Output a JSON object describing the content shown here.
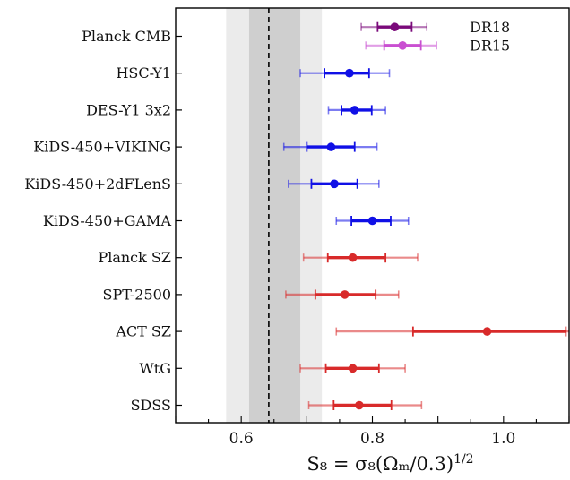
{
  "chart_data": {
    "type": "scatter",
    "title": "",
    "xlabel": "S₈ = σ₈(Ωₘ/0.3)",
    "xlabel_exponent": "1/2",
    "xlim": [
      0.5,
      1.1
    ],
    "x_ticks": [
      0.6,
      0.8,
      1.0
    ],
    "x_tick_labels": [
      "0.6",
      "0.8",
      "1.0"
    ],
    "reference_line": 0.642,
    "bands": [
      {
        "range": [
          0.577,
          0.723
        ],
        "color": "#ebebeb"
      },
      {
        "range": [
          0.612,
          0.69
        ],
        "color": "#cfcfcf"
      }
    ],
    "colors": {
      "dr18": "#7a0a7a",
      "dr15": "#c94fd1",
      "lensing": "#1010e6",
      "cluster": "#d82a2a"
    },
    "legend": [
      {
        "label": "DR18",
        "row": 0
      },
      {
        "label": "DR15",
        "row": 0.5
      }
    ],
    "points": [
      {
        "label": "Planck CMB",
        "color_key": "dr18",
        "row": -0.25,
        "value": 0.834,
        "err68": [
          0.808,
          0.86
        ],
        "err95": [
          0.783,
          0.883
        ]
      },
      {
        "label": "",
        "color_key": "dr15",
        "row": 0.25,
        "value": 0.846,
        "err68": [
          0.818,
          0.874
        ],
        "err95": [
          0.79,
          0.898
        ]
      },
      {
        "label": "HSC-Y1",
        "color_key": "lensing",
        "row": 1,
        "value": 0.765,
        "err68": [
          0.727,
          0.795
        ],
        "err95": [
          0.69,
          0.826
        ]
      },
      {
        "label": "DES-Y1 3x2",
        "color_key": "lensing",
        "row": 2,
        "value": 0.773,
        "err68": [
          0.753,
          0.799
        ],
        "err95": [
          0.733,
          0.82
        ]
      },
      {
        "label": "KiDS-450+VIKING",
        "color_key": "lensing",
        "row": 3,
        "value": 0.737,
        "err68": [
          0.7,
          0.773
        ],
        "err95": [
          0.665,
          0.807
        ]
      },
      {
        "label": "KiDS-450+2dFLenS",
        "color_key": "lensing",
        "row": 4,
        "value": 0.742,
        "err68": [
          0.707,
          0.777
        ],
        "err95": [
          0.672,
          0.81
        ]
      },
      {
        "label": "KiDS-450+GAMA",
        "color_key": "lensing",
        "row": 5,
        "value": 0.8,
        "err68": [
          0.768,
          0.828
        ],
        "err95": [
          0.745,
          0.855
        ]
      },
      {
        "label": "Planck SZ",
        "color_key": "cluster",
        "row": 6,
        "value": 0.77,
        "err68": [
          0.732,
          0.82
        ],
        "err95": [
          0.695,
          0.869
        ]
      },
      {
        "label": "SPT-2500",
        "color_key": "cluster",
        "row": 7,
        "value": 0.758,
        "err68": [
          0.713,
          0.805
        ],
        "err95": [
          0.668,
          0.84
        ]
      },
      {
        "label": "ACT SZ",
        "color_key": "cluster",
        "row": 8,
        "value": 0.975,
        "err68": [
          0.862,
          1.095
        ],
        "err95": [
          0.745,
          1.13
        ]
      },
      {
        "label": "WtG",
        "color_key": "cluster",
        "row": 9,
        "value": 0.77,
        "err68": [
          0.729,
          0.81
        ],
        "err95": [
          0.69,
          0.85
        ]
      },
      {
        "label": "SDSS",
        "color_key": "cluster",
        "row": 10,
        "value": 0.78,
        "err68": [
          0.741,
          0.829
        ],
        "err95": [
          0.703,
          0.875
        ]
      }
    ]
  }
}
